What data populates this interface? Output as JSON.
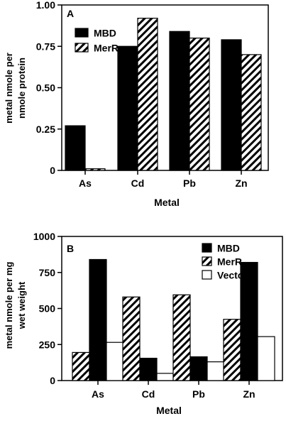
{
  "chart_data": [
    {
      "type": "bar",
      "panel_label": "A",
      "categories": [
        "As",
        "Cd",
        "Pb",
        "Zn"
      ],
      "series": [
        {
          "name": "MBD",
          "values": [
            0.27,
            0.75,
            0.84,
            0.79
          ],
          "pattern": "solid"
        },
        {
          "name": "MerR",
          "values": [
            0.01,
            0.92,
            0.8,
            0.7
          ],
          "pattern": "hatch"
        }
      ],
      "xlabel": "Metal",
      "ylabel_lines": [
        "metal nmole per",
        "nmole protein"
      ],
      "ylim": [
        0,
        1.0
      ],
      "yticks": [
        0,
        0.25,
        0.5,
        0.75,
        1.0
      ],
      "ytick_labels": [
        "0",
        "0.25",
        "0.50",
        "0.75",
        "1.00"
      ],
      "grid": false,
      "legend_position": "top-left"
    },
    {
      "type": "bar",
      "panel_label": "B",
      "categories": [
        "As",
        "Cd",
        "Pb",
        "Zn"
      ],
      "series": [
        {
          "name": "MerR",
          "values": [
            195,
            580,
            595,
            425
          ],
          "pattern": "hatch"
        },
        {
          "name": "MBD",
          "values": [
            840,
            155,
            165,
            820
          ],
          "pattern": "solid"
        },
        {
          "name": "Vector",
          "values": [
            265,
            50,
            130,
            305
          ],
          "pattern": "open"
        }
      ],
      "legend_order": [
        "MBD",
        "MerR",
        "Vector"
      ],
      "xlabel": "Metal",
      "ylabel_lines": [
        "metal nmole per mg",
        "wet weight"
      ],
      "ylim": [
        0,
        1000
      ],
      "yticks": [
        0,
        250,
        500,
        750,
        1000
      ],
      "ytick_labels": [
        "0",
        "250",
        "500",
        "750",
        "1000"
      ],
      "grid": false,
      "legend_position": "top-right"
    }
  ]
}
